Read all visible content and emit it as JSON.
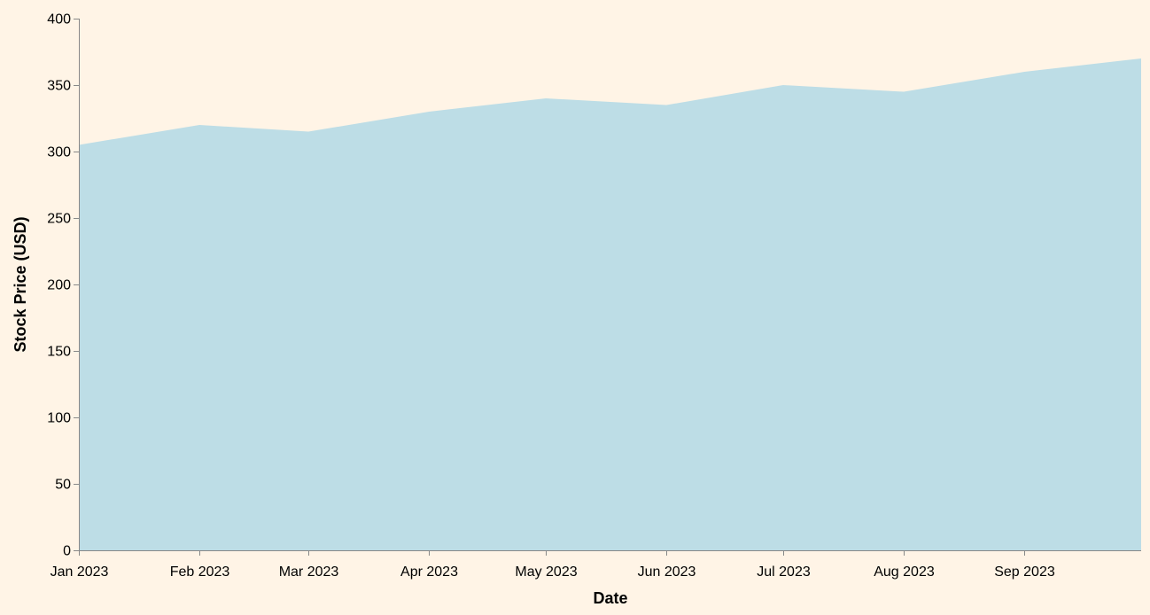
{
  "chart_data": {
    "type": "area",
    "title": "",
    "xlabel": "Date",
    "ylabel": "Stock Price (USD)",
    "x": [
      "2023-01-01",
      "2023-02-01",
      "2023-03-01",
      "2023-04-01",
      "2023-05-01",
      "2023-06-01",
      "2023-07-01",
      "2023-08-01",
      "2023-09-01",
      "2023-10-01"
    ],
    "x_tick_labels": [
      "Jan 2023",
      "Feb 2023",
      "Mar 2023",
      "Apr 2023",
      "May 2023",
      "Jun 2023",
      "Jul 2023",
      "Aug 2023",
      "Sep 2023"
    ],
    "values": [
      305,
      320,
      315,
      330,
      340,
      335,
      350,
      345,
      360,
      370
    ],
    "ylim": [
      0,
      400
    ],
    "y_ticks": [
      0,
      50,
      100,
      150,
      200,
      250,
      300,
      350,
      400
    ],
    "grid": false,
    "colors": {
      "background": "#fff4e6",
      "area": "#bddde6",
      "axis": "#888888"
    }
  }
}
